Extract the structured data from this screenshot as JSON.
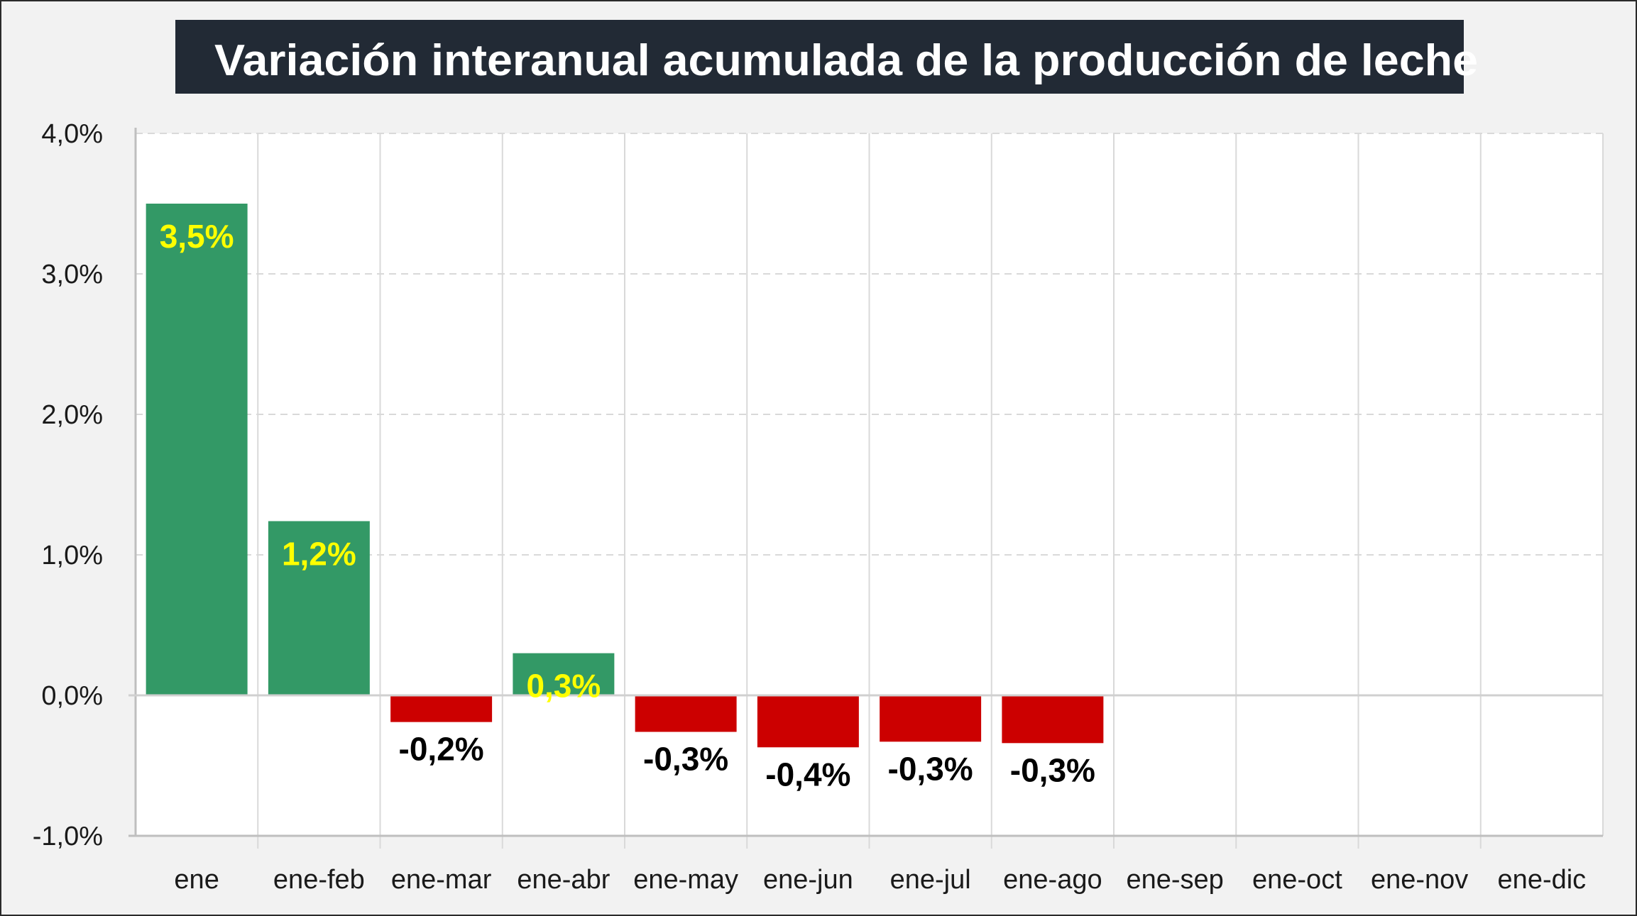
{
  "chart_data": {
    "type": "bar",
    "title": "Variación interanual acumulada de la producción de leche",
    "xlabel": "",
    "ylabel": "",
    "categories": [
      "ene",
      "ene-feb",
      "ene-mar",
      "ene-abr",
      "ene-may",
      "ene-jun",
      "ene-jul",
      "ene-ago",
      "ene-sep",
      "ene-oct",
      "ene-nov",
      "ene-dic"
    ],
    "values": [
      3.5,
      1.24,
      -0.19,
      0.3,
      -0.26,
      -0.37,
      -0.33,
      -0.34,
      null,
      null,
      null,
      null
    ],
    "data_labels": [
      "3,5%",
      "1,2%",
      "-0,2%",
      "0,3%",
      "-0,3%",
      "-0,4%",
      "-0,3%",
      "-0,3%",
      "",
      "",
      "",
      ""
    ],
    "ylim": [
      -1.0,
      4.0
    ],
    "yticks": [
      4.0,
      3.0,
      2.0,
      1.0,
      0.0,
      -1.0
    ],
    "ytick_labels": [
      "4,0%",
      "3,0%",
      "2,0%",
      "1,0%",
      "0,0%",
      "-1,0%"
    ],
    "grid": true,
    "legend": "none",
    "colors": {
      "positive_bar": "#339966",
      "negative_bar": "#cc0000",
      "positive_label": "#ffff00",
      "negative_label": "#000000",
      "title_bg": "#222a35",
      "title_text": "#ffffff",
      "background": "#f2f2f2",
      "plot_background": "#ffffff",
      "gridline": "#d9d9d9"
    }
  }
}
